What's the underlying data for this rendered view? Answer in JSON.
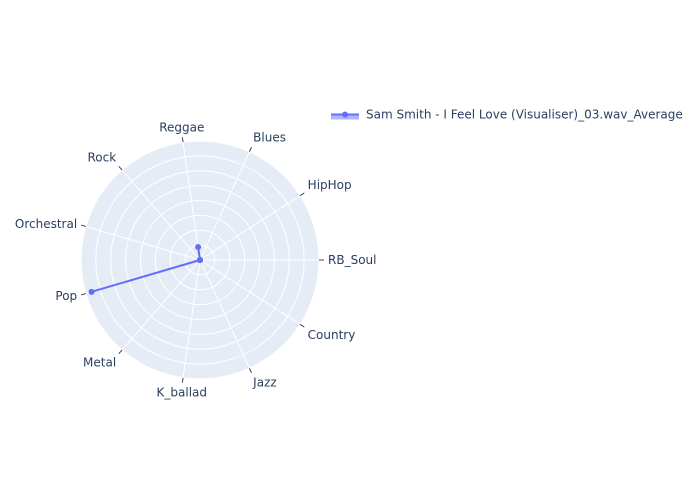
{
  "chart_data": {
    "type": "radar",
    "angular_direction": "counterclockwise",
    "categories": [
      "RB_Soul",
      "HipHop",
      "Blues",
      "Reggae",
      "Rock",
      "Orchestral",
      "Pop",
      "Metal",
      "K_ballad",
      "Jazz",
      "Country"
    ],
    "series": [
      {
        "name": "Sam Smith - I Feel Love (Visualiser)_03.wav_Average",
        "values": [
          0.0,
          0.0,
          0.0,
          0.11,
          0.0,
          0.0,
          0.95,
          0.0,
          0.0,
          0.0,
          0.0
        ],
        "closed": false
      }
    ],
    "radial_range": [
      0,
      1
    ],
    "radial_tick_count": 8,
    "grid": true,
    "legend": {
      "placement": "top-right",
      "show_marker_line": true
    },
    "colors": {
      "series": "#636efa",
      "polar_background": "#e5ecf6",
      "grid": "#ffffff",
      "axis_text": "#2a3f5f",
      "tick_mark": "#444444"
    }
  }
}
